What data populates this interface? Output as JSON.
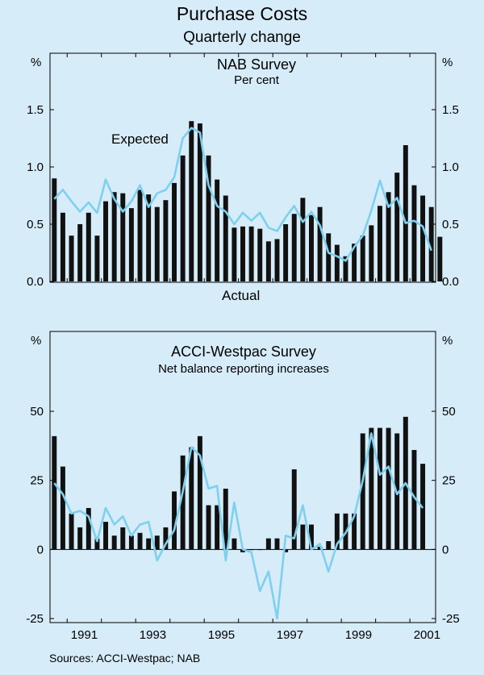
{
  "title": "Purchase Costs",
  "subtitle": "Quarterly change",
  "source": "Sources: ACCI-Westpac; NAB",
  "colors": {
    "background": "#d6ecf8",
    "bars": "#111111",
    "line": "#7fd0ee",
    "frame": "#000000"
  },
  "chart_data": [
    {
      "type": "bar",
      "panel": "top",
      "title": "NAB Survey",
      "subtitle": "Per cent",
      "unit_left": "%",
      "unit_right": "%",
      "ylim": [
        0,
        1.5
      ],
      "yticks": [
        "0.0",
        "0.5",
        "1.0",
        "1.5"
      ],
      "xlim": [
        1990.5,
        2001.75
      ],
      "annotations": [
        "Expected",
        "Actual"
      ],
      "series": [
        {
          "name": "Actual",
          "kind": "bar",
          "start_year": 1990.5,
          "values": [
            0.9,
            0.6,
            0.4,
            0.5,
            0.6,
            0.4,
            0.7,
            0.78,
            0.77,
            0.64,
            0.8,
            0.76,
            0.65,
            0.71,
            0.86,
            1.1,
            1.4,
            1.38,
            1.1,
            0.89,
            0.75,
            0.47,
            0.48,
            0.48,
            0.46,
            0.35,
            0.37,
            0.5,
            0.59,
            0.73,
            0.58,
            0.65,
            0.42,
            0.32,
            0.22,
            0.33,
            0.4,
            0.49,
            0.66,
            0.78,
            0.95,
            1.19,
            0.84,
            0.75,
            0.65,
            0.39
          ]
        },
        {
          "name": "Expected",
          "kind": "line",
          "start_year": 1990.5,
          "values": [
            0.72,
            0.8,
            0.7,
            0.61,
            0.69,
            0.6,
            0.89,
            0.72,
            0.61,
            0.7,
            0.84,
            0.65,
            0.77,
            0.8,
            0.91,
            1.25,
            1.34,
            1.3,
            0.84,
            0.66,
            0.61,
            0.5,
            0.6,
            0.53,
            0.6,
            0.47,
            0.44,
            0.56,
            0.66,
            0.52,
            0.61,
            0.49,
            0.25,
            0.22,
            0.18,
            0.3,
            0.4,
            0.62,
            0.88,
            0.65,
            0.73,
            0.51,
            0.53,
            0.48,
            0.27
          ]
        }
      ]
    },
    {
      "type": "bar",
      "panel": "bottom",
      "title": "ACCI-Westpac Survey",
      "subtitle": "Net balance reporting increases",
      "unit_left": "%",
      "unit_right": "%",
      "ylim": [
        -25,
        50
      ],
      "yticks": [
        "-25",
        "0",
        "25",
        "50"
      ],
      "xlim": [
        1990.5,
        2001.75
      ],
      "xticks": [
        "1991",
        "1993",
        "1995",
        "1997",
        "1999",
        "2001"
      ],
      "series": [
        {
          "name": "Actual",
          "kind": "bar",
          "start_year": 1990.5,
          "values": [
            41,
            30,
            13,
            8,
            15,
            4,
            10,
            5,
            8,
            5,
            6,
            4,
            5,
            8,
            21,
            34,
            37,
            41,
            16,
            16,
            22,
            4,
            -1,
            0,
            0,
            4,
            4,
            -1,
            29,
            9,
            9,
            1,
            3,
            13,
            13,
            13,
            42,
            44,
            44,
            44,
            42,
            48,
            36,
            31
          ]
        },
        {
          "name": "Expected",
          "kind": "line",
          "start_year": 1990.5,
          "values": [
            24,
            20,
            13,
            14,
            12,
            3,
            15,
            9,
            12,
            5,
            9,
            10,
            -4,
            2,
            7,
            21,
            37,
            34,
            22,
            23,
            -4,
            17,
            0,
            -1,
            -15,
            -8,
            -25,
            5,
            4,
            16,
            0,
            2,
            -8,
            2,
            6,
            12,
            25,
            42,
            27,
            30,
            20,
            24,
            19,
            15
          ]
        }
      ]
    }
  ]
}
